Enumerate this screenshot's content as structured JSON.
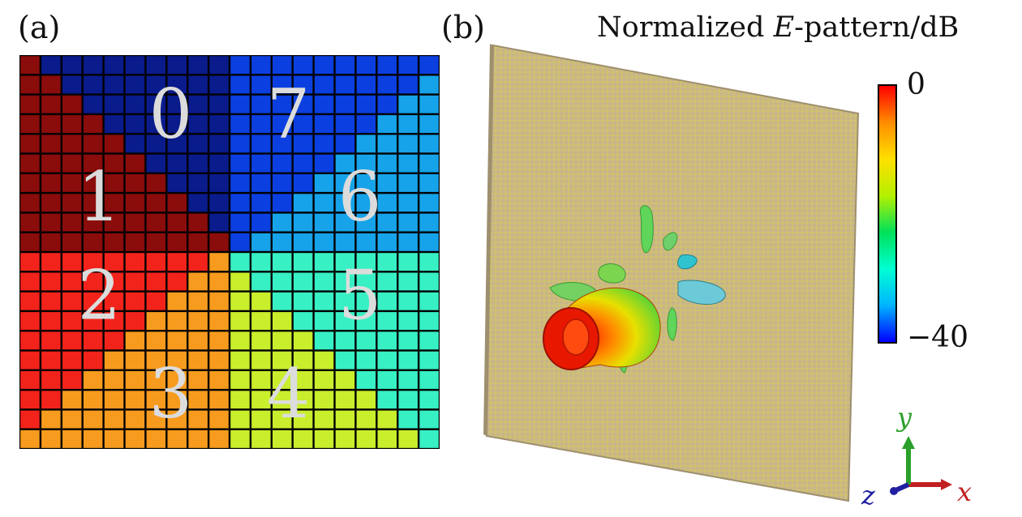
{
  "panel_a": {
    "label": "(a)",
    "grid_size": 20,
    "region_numbers": [
      "0",
      "1",
      "2",
      "3",
      "4",
      "5",
      "6",
      "7"
    ],
    "phase_colors": [
      "#0a1b8c",
      "#0b3fe0",
      "#16a3e9",
      "#37f0c4",
      "#c8ee2c",
      "#f79b1e",
      "#f2231b",
      "#8a0c0b"
    ]
  },
  "panel_b": {
    "label": "(b)",
    "title_prefix": "Normalized ",
    "title_symbol": "E",
    "title_suffix": "-pattern/dB",
    "colorbar": {
      "max_label": "0",
      "min_label": "−40",
      "colors": [
        "#0000ff",
        "#00b4ff",
        "#00ffd2",
        "#00e05a",
        "#b4f000",
        "#ffe000",
        "#ff8c00",
        "#ff0000"
      ]
    },
    "axes": {
      "x": "x",
      "y": "y",
      "z": "z"
    },
    "axis_colors": {
      "x": "#c02020",
      "y": "#2aa02a",
      "z": "#2020a0"
    }
  }
}
